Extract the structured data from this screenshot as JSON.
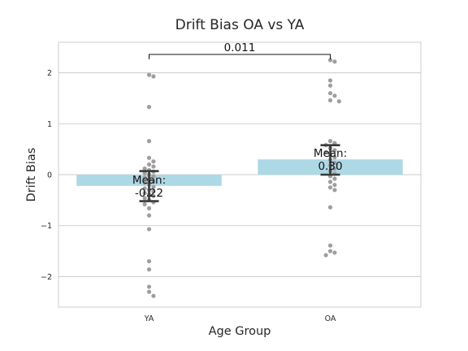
{
  "chart_data": {
    "type": "bar",
    "title": "Drift Bias OA vs YA",
    "xlabel": "Age Group",
    "ylabel": "Drift Bias",
    "categories": [
      "YA",
      "OA"
    ],
    "values": [
      -0.22,
      0.3
    ],
    "error_bars": [
      {
        "low": -0.52,
        "high": 0.07
      },
      {
        "low": 0.0,
        "high": 0.58
      }
    ],
    "bar_color": "#add8e6",
    "point_color": "#9e9e9e",
    "ylim": [
      -2.6,
      2.6
    ],
    "yticks": [
      -2,
      -1,
      0,
      1,
      2
    ],
    "ytick_labels": [
      "−2",
      "−1",
      "0",
      "1",
      "2"
    ],
    "grid": true,
    "mean_labels": [
      "Mean:\n-0.22",
      "Mean:\n0.30"
    ],
    "significance": {
      "between": [
        "YA",
        "OA"
      ],
      "label": "0.011"
    },
    "points": {
      "YA": [
        1.96,
        1.93,
        1.33,
        0.66,
        0.33,
        0.26,
        0.2,
        0.16,
        0.12,
        0.09,
        0.06,
        0.03,
        0.0,
        -0.03,
        -0.06,
        -0.1,
        -0.13,
        -0.16,
        -0.2,
        -0.24,
        -0.27,
        -0.3,
        -0.33,
        -0.36,
        -0.39,
        -0.42,
        -0.46,
        -0.5,
        -0.54,
        -0.58,
        -0.66,
        -0.8,
        -1.07,
        -1.7,
        -1.86,
        -2.2,
        -2.3,
        -2.38
      ],
      "OA": [
        2.25,
        2.22,
        1.85,
        1.75,
        1.6,
        1.55,
        1.46,
        1.44,
        0.66,
        0.62,
        0.58,
        0.52,
        0.48,
        0.44,
        0.39,
        0.34,
        0.29,
        0.23,
        0.18,
        0.12,
        0.07,
        0.02,
        -0.03,
        -0.08,
        -0.14,
        -0.2,
        -0.25,
        -0.3,
        -0.64,
        -1.39,
        -1.5,
        -1.53,
        -1.58
      ]
    }
  }
}
